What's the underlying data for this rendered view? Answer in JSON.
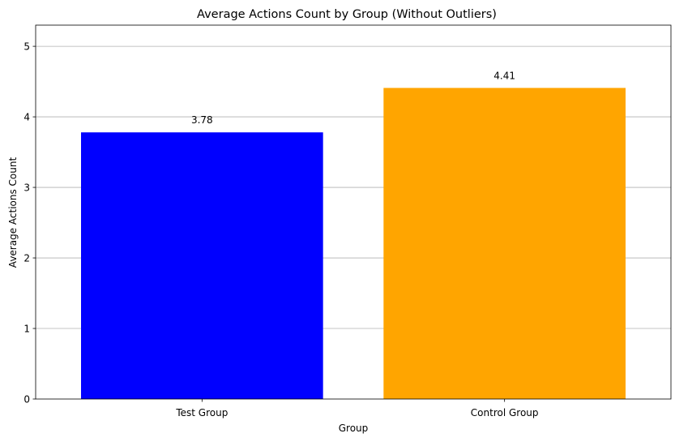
{
  "chart_data": {
    "type": "bar",
    "title": "Average Actions Count by Group (Without Outliers)",
    "xlabel": "Group",
    "ylabel": "Average Actions Count",
    "categories": [
      "Test Group",
      "Control Group"
    ],
    "values": [
      3.78,
      4.41
    ],
    "value_labels": [
      "3.78",
      "4.41"
    ],
    "colors": [
      "#0000ff",
      "#ffa500"
    ],
    "ylim": [
      0,
      5.3
    ],
    "yticks": [
      0,
      1,
      2,
      3,
      4,
      5
    ],
    "grid": "y-major",
    "legend": "none"
  }
}
